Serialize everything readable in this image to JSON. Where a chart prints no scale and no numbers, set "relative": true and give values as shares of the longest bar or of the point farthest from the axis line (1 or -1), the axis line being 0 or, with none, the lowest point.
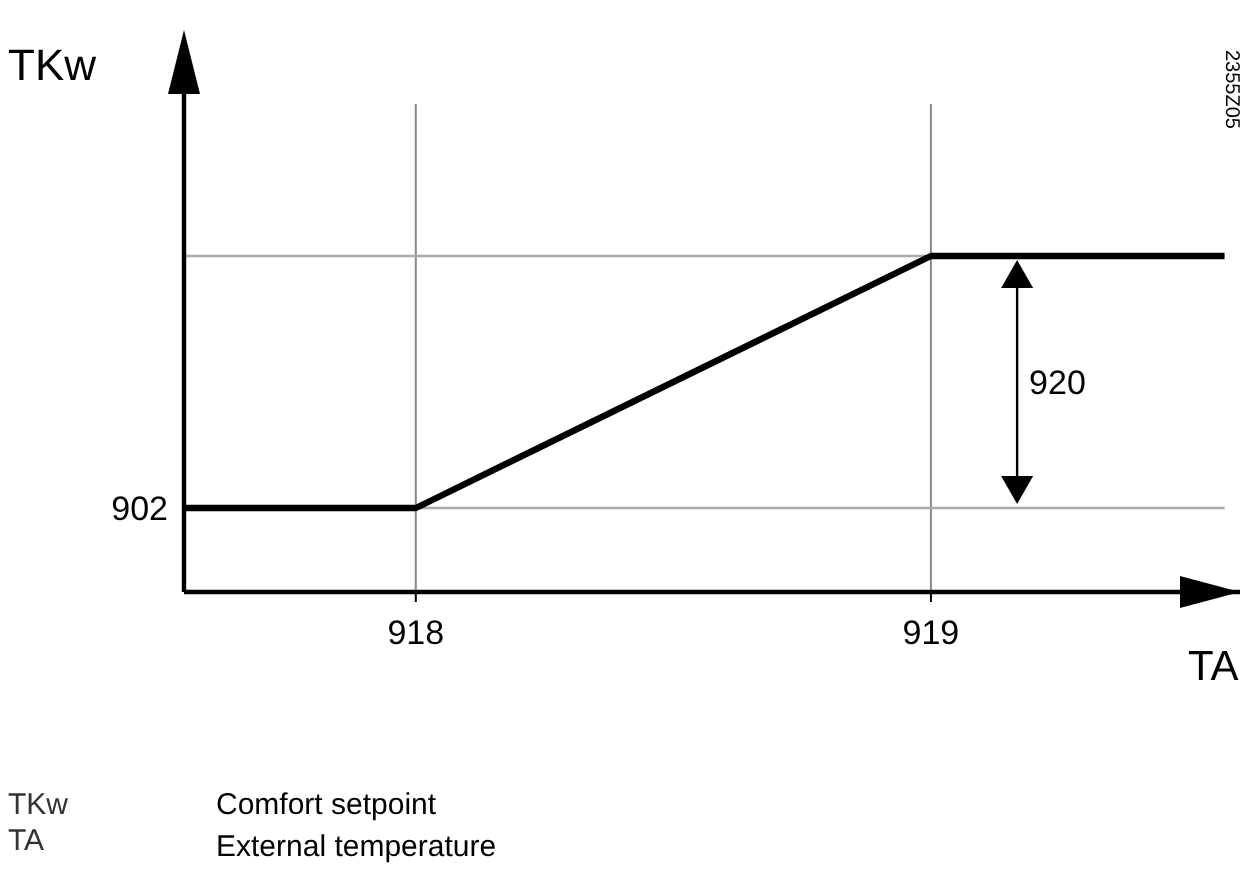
{
  "chart_data": {
    "type": "line",
    "relative": true,
    "xlabel": "TA",
    "ylabel": "TKw",
    "x": [
      917.55,
      918,
      919,
      919.57
    ],
    "series": [
      {
        "color": "#000000",
        "values": [
          0.25,
          0.25,
          1,
          1
        ]
      }
    ],
    "xlim": [
      917.55,
      919.6
    ],
    "xticks": [
      918,
      919
    ],
    "grid": "x",
    "marker": "none",
    "line_style": "solid",
    "ref_lines": [
      {
        "axis": "y",
        "value": 0.25,
        "color": "#aaaaaa"
      },
      {
        "axis": "y",
        "value": 1,
        "color": "#aaaaaa"
      }
    ],
    "annotations": [
      "920",
      "902",
      "2355Z05",
      "TKw",
      "Comfort setpoint",
      "TA",
      "External temperature"
    ]
  }
}
